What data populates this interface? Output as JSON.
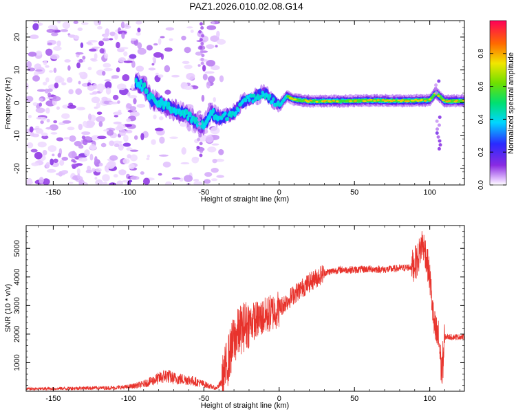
{
  "title": "PAZ1.2026.010.02.08.G14",
  "chart_data": [
    {
      "type": "heatmap",
      "title": "PAZ1.2026.010.02.08.G14",
      "xlabel": "Height of straight line (km)",
      "ylabel": "Frequency (Hz)",
      "xlim": [
        -168,
        123
      ],
      "ylim": [
        -25,
        25
      ],
      "xticks": [
        -150,
        -100,
        -50,
        0,
        50,
        100
      ],
      "yticks": [
        -20,
        -10,
        0,
        10,
        20
      ],
      "colorbar": {
        "label": "Normalized spectral amplitude",
        "range": [
          0,
          1
        ],
        "ticks": [
          0.0,
          0.2,
          0.4,
          0.6,
          0.8
        ],
        "tick_labels": [
          "0.0",
          "0.2",
          "0.4",
          "0.6",
          "0.8"
        ],
        "colormap": "rainbow (violet to red)"
      },
      "ridge_center_hz": {
        "x": [
          -95,
          -90,
          -85,
          -80,
          -75,
          -70,
          -65,
          -60,
          -55,
          -50,
          -45,
          -40,
          -35,
          -30,
          -25,
          -20,
          -15,
          -10,
          -5,
          0,
          5,
          10,
          20,
          40,
          60,
          80,
          100,
          104,
          110,
          123
        ],
        "y": [
          6,
          5,
          1,
          0,
          -1,
          -2,
          -3,
          -4,
          -6,
          -7,
          -3,
          -5,
          -4,
          -3,
          0,
          1,
          2,
          3,
          1,
          -1,
          2,
          1,
          0.5,
          0.5,
          0.7,
          0.6,
          0.8,
          3,
          0.5,
          0.6
        ]
      },
      "noise_region_km": [
        -168,
        -38
      ]
    },
    {
      "type": "line",
      "xlabel": "Height of straight line (km)",
      "ylabel": "SNR (10 * v/v)",
      "xlim": [
        -168,
        123
      ],
      "ylim": [
        0,
        5800
      ],
      "xticks": [
        -150,
        -100,
        -50,
        0,
        50,
        100
      ],
      "yticks": [
        1000,
        2000,
        3000,
        4000,
        5000
      ],
      "series": [
        {
          "name": "SNR",
          "color": "#e8332c",
          "x": [
            -168,
            -150,
            -130,
            -110,
            -100,
            -90,
            -80,
            -75,
            -70,
            -60,
            -50,
            -42,
            -38,
            -35,
            -30,
            -25,
            -20,
            -10,
            0,
            10,
            20,
            30,
            40,
            50,
            60,
            70,
            80,
            88,
            92,
            95,
            97,
            100,
            103,
            106,
            108,
            110,
            115,
            123
          ],
          "y": [
            80,
            90,
            110,
            120,
            150,
            250,
            450,
            550,
            450,
            400,
            250,
            100,
            300,
            900,
            1800,
            2200,
            2400,
            2600,
            2900,
            3400,
            3800,
            4150,
            4250,
            4250,
            4280,
            4260,
            4300,
            4350,
            4600,
            5200,
            4900,
            4000,
            2200,
            1800,
            600,
            1900,
            1900,
            1900
          ]
        }
      ]
    }
  ],
  "colors": {
    "line": "#e8332c",
    "axis": "#000000",
    "background": "#ffffff"
  }
}
